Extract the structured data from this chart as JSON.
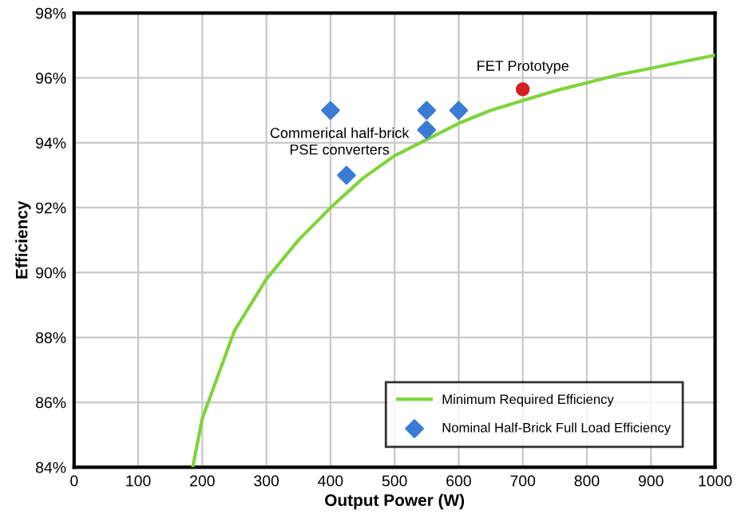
{
  "chart_data": {
    "type": "line",
    "xlabel": "Output Power (W)",
    "ylabel": "Efficiency",
    "xlim": [
      0,
      1000
    ],
    "ylim": [
      84,
      98
    ],
    "xticks": [
      0,
      100,
      200,
      300,
      400,
      500,
      600,
      700,
      800,
      900,
      1000
    ],
    "yticks": [
      {
        "value": 84,
        "label": "84%"
      },
      {
        "value": 86,
        "label": "86%"
      },
      {
        "value": 88,
        "label": "88%"
      },
      {
        "value": 90,
        "label": "90%"
      },
      {
        "value": 92,
        "label": "92%"
      },
      {
        "value": 94,
        "label": "94%"
      },
      {
        "value": 96,
        "label": "96%"
      },
      {
        "value": 98,
        "label": "98%"
      }
    ],
    "grid": true,
    "legend": "bottom right",
    "series": [
      {
        "name": "Minimum Required Efficiency",
        "color": "#7fd43a",
        "marker": "none",
        "x": [
          185,
          200,
          250,
          300,
          350,
          400,
          450,
          500,
          550,
          600,
          650,
          700,
          750,
          800,
          850,
          900,
          950,
          1000
        ],
        "values": [
          84,
          85.5,
          88.2,
          89.8,
          91,
          92,
          92.9,
          93.6,
          94.1,
          94.6,
          95,
          95.3,
          95.6,
          95.85,
          96.1,
          96.3,
          96.5,
          96.7
        ]
      },
      {
        "name": "Nominal Half-Brick Full Load Efficiency",
        "type": "scatter",
        "color": "#3a7bd5",
        "marker": "diamond",
        "x": [
          400,
          425,
          550,
          550,
          600
        ],
        "values": [
          95,
          93,
          95,
          94.4,
          95
        ]
      },
      {
        "type": "scatter",
        "color": "#d42020",
        "marker": "circle",
        "x": [
          700
        ],
        "values": [
          95.65
        ]
      }
    ],
    "annotations": [
      "Commerical half-brick\nPSE converters",
      {
        "text": "FET Prototype",
        "x": 700,
        "y": 95.65
      }
    ]
  }
}
